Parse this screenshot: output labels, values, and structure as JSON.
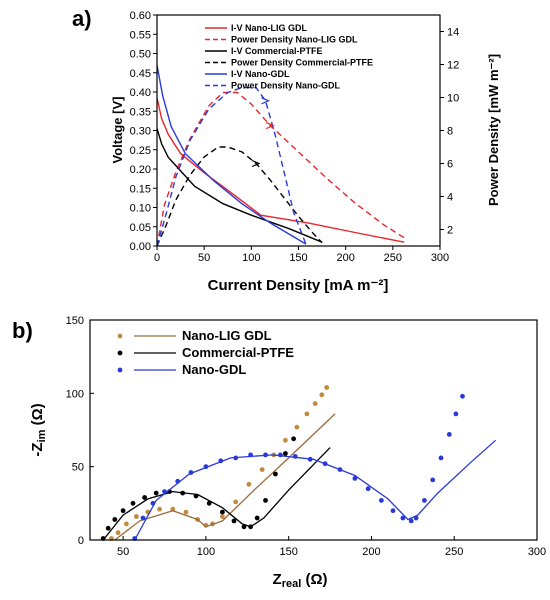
{
  "panel_a": {
    "label": "a)",
    "xlabel": "Current Density [mA m⁻²]",
    "ylabel_left": "Voltage [V]",
    "ylabel_right": "Power Density [mW m⁻²]"
  },
  "panel_b": {
    "label": "b)",
    "xlabel_base": "Z",
    "xlabel_sub": "real",
    "xlabel_unit": " (Ω)",
    "ylabel_base": "-Z",
    "ylabel_sub": "im",
    "ylabel_unit": " (Ω)"
  },
  "chart_data": [
    {
      "type": "line",
      "xlabel": "Current Density [mA m⁻²]",
      "ylabel": "Voltage [V]",
      "y2label": "Power Density [mW m⁻²]",
      "xlim": [
        0,
        300
      ],
      "ylim": [
        0,
        0.6
      ],
      "y2lim": [
        1,
        15
      ],
      "xticks": [
        "0",
        "50",
        "100",
        "150",
        "200",
        "250",
        "300"
      ],
      "yticks": [
        "0.00",
        "0.05",
        "0.10",
        "0.15",
        "0.20",
        "0.25",
        "0.30",
        "0.35",
        "0.40",
        "0.45",
        "0.50",
        "0.55",
        "0.60"
      ],
      "y2ticks": [
        "2",
        "4",
        "6",
        "8",
        "10",
        "12",
        "14"
      ],
      "legend_position": "top-center",
      "series": [
        {
          "name": "I-V Nano-LIG GDL",
          "axis": "left",
          "color": "#e8262b",
          "dash": false,
          "x": [
            0,
            5,
            12,
            25,
            50,
            75,
            110,
            160,
            210,
            262
          ],
          "y": [
            0.385,
            0.33,
            0.29,
            0.24,
            0.19,
            0.145,
            0.08,
            0.06,
            0.035,
            0.01
          ]
        },
        {
          "name": "Power Density Nano-LIG GDL",
          "axis": "right",
          "color": "#e8262b",
          "dash": true,
          "x": [
            0,
            8,
            20,
            35,
            55,
            70,
            85,
            100,
            120,
            150,
            180,
            210,
            240,
            262
          ],
          "y": [
            1.0,
            3.5,
            5.5,
            7.5,
            9.5,
            10.3,
            10.3,
            9.6,
            8.3,
            6.7,
            5.1,
            3.6,
            2.3,
            1.5
          ]
        },
        {
          "name": "I-V Commercial-PTFE",
          "axis": "left",
          "color": "#000000",
          "dash": false,
          "x": [
            0,
            5,
            12,
            25,
            40,
            70,
            100,
            140,
            175
          ],
          "y": [
            0.305,
            0.265,
            0.23,
            0.195,
            0.155,
            0.11,
            0.08,
            0.045,
            0.01
          ]
        },
        {
          "name": "Power Density Commercial-PTFE",
          "axis": "right",
          "color": "#000000",
          "dash": true,
          "x": [
            0,
            10,
            20,
            35,
            50,
            65,
            75,
            90,
            105,
            120,
            135,
            150,
            165,
            175
          ],
          "y": [
            1.0,
            2.3,
            3.8,
            5.3,
            6.4,
            7.0,
            7.0,
            6.7,
            6.0,
            5.0,
            3.9,
            2.8,
            1.8,
            1.2
          ]
        },
        {
          "name": "I-V Nano-GDL",
          "axis": "left",
          "color": "#2a3ad6",
          "dash": false,
          "x": [
            0,
            6,
            15,
            30,
            60,
            90,
            120,
            158
          ],
          "y": [
            0.47,
            0.39,
            0.31,
            0.24,
            0.17,
            0.11,
            0.06,
            0.005
          ]
        },
        {
          "name": "Power Density Nano-GDL",
          "axis": "right",
          "color": "#2a3ad6",
          "dash": true,
          "x": [
            0,
            10,
            20,
            35,
            55,
            75,
            90,
            105,
            115,
            125,
            135,
            145,
            158
          ],
          "y": [
            1.0,
            3.0,
            5.2,
            7.4,
            9.3,
            10.3,
            10.6,
            10.6,
            9.8,
            7.8,
            5.4,
            3.0,
            1.1
          ]
        }
      ]
    },
    {
      "type": "scatter",
      "xlabel": "Zreal (Ω)",
      "ylabel": "-Zim (Ω)",
      "xlim": [
        30,
        300
      ],
      "ylim": [
        0,
        150
      ],
      "xticks": [
        "50",
        "100",
        "150",
        "200",
        "250",
        "300"
      ],
      "yticks": [
        "0",
        "50",
        "100",
        "150"
      ],
      "legend_position": "top-left",
      "series": [
        {
          "name": "Nano-LIG GDL",
          "color": "#9a6b3a",
          "fill": "#c28a3e",
          "fit": {
            "x": [
              45,
              60,
              80,
              95,
              100,
              110,
              130,
              150,
              178
            ],
            "y": [
              0,
              13,
              20,
              14,
              9,
              13,
              35,
              56,
              86
            ]
          },
          "points": {
            "x": [
              43,
              47,
              52,
              58,
              65,
              72,
              80,
              88,
              95,
              100,
              104,
              110,
              118,
              126,
              134,
              141,
              148,
              155,
              161,
              166,
              170,
              173
            ],
            "y": [
              1,
              5,
              11,
              16,
              19,
              21,
              21,
              19,
              14,
              10,
              11,
              16,
              26,
              38,
              48,
              58,
              68,
              77,
              86,
              93,
              99,
              104
            ]
          }
        },
        {
          "name": "Commercial-PTFE",
          "color": "#000000",
          "fill": "#000000",
          "fit": {
            "x": [
              38,
              50,
              65,
              80,
              95,
              110,
              122,
              127,
              135,
              150,
              175
            ],
            "y": [
              0,
              17,
              28,
              33,
              31,
              22,
              11,
              9,
              15,
              34,
              63
            ]
          },
          "points": {
            "x": [
              38,
              41,
              45,
              50,
              56,
              63,
              70,
              78,
              86,
              94,
              102,
              110,
              117,
              123,
              127,
              131,
              136,
              142,
              148,
              153
            ],
            "y": [
              1,
              8,
              14,
              20,
              25,
              29,
              32,
              33,
              32,
              30,
              25,
              19,
              13,
              9,
              9,
              15,
              27,
              45,
              59,
              69
            ]
          }
        },
        {
          "name": "Nano-GDL",
          "color": "#2a3ad6",
          "fill": "#2a3ad6",
          "fit": {
            "x": [
              57,
              70,
              90,
              115,
              140,
              165,
              190,
              210,
              222,
              228,
              240,
              260,
              275
            ],
            "y": [
              0,
              27,
              45,
              56,
              58,
              55,
              44,
              28,
              14,
              17,
              32,
              53,
              68
            ]
          },
          "points": {
            "x": [
              57,
              62,
              68,
              75,
              83,
              91,
              100,
              109,
              118,
              127,
              136,
              145,
              154,
              163,
              172,
              181,
              190,
              198,
              206,
              213,
              219,
              224,
              227,
              232,
              237,
              242,
              247,
              251,
              255
            ],
            "y": [
              1,
              15,
              25,
              33,
              40,
              46,
              50,
              54,
              56,
              58,
              58,
              58,
              57,
              55,
              52,
              48,
              42,
              35,
              27,
              20,
              15,
              13,
              15,
              27,
              41,
              56,
              72,
              86,
              98
            ]
          }
        }
      ]
    }
  ]
}
